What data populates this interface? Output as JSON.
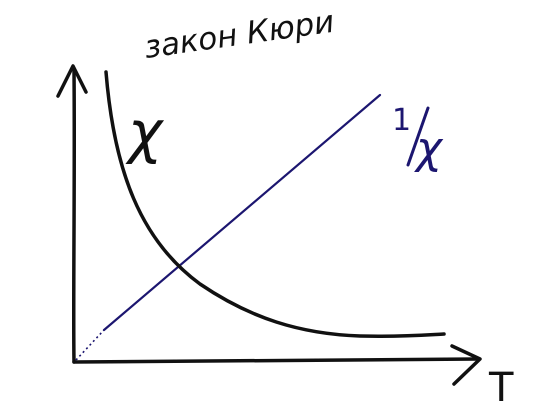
{
  "diagram": {
    "title": "закон Кюри",
    "x_axis_label": "T",
    "curve_label": "χ",
    "line_label_numerator": "1",
    "line_label_denominator": "χ",
    "colors": {
      "ink": "#111111",
      "line": "#1c1670"
    }
  }
}
